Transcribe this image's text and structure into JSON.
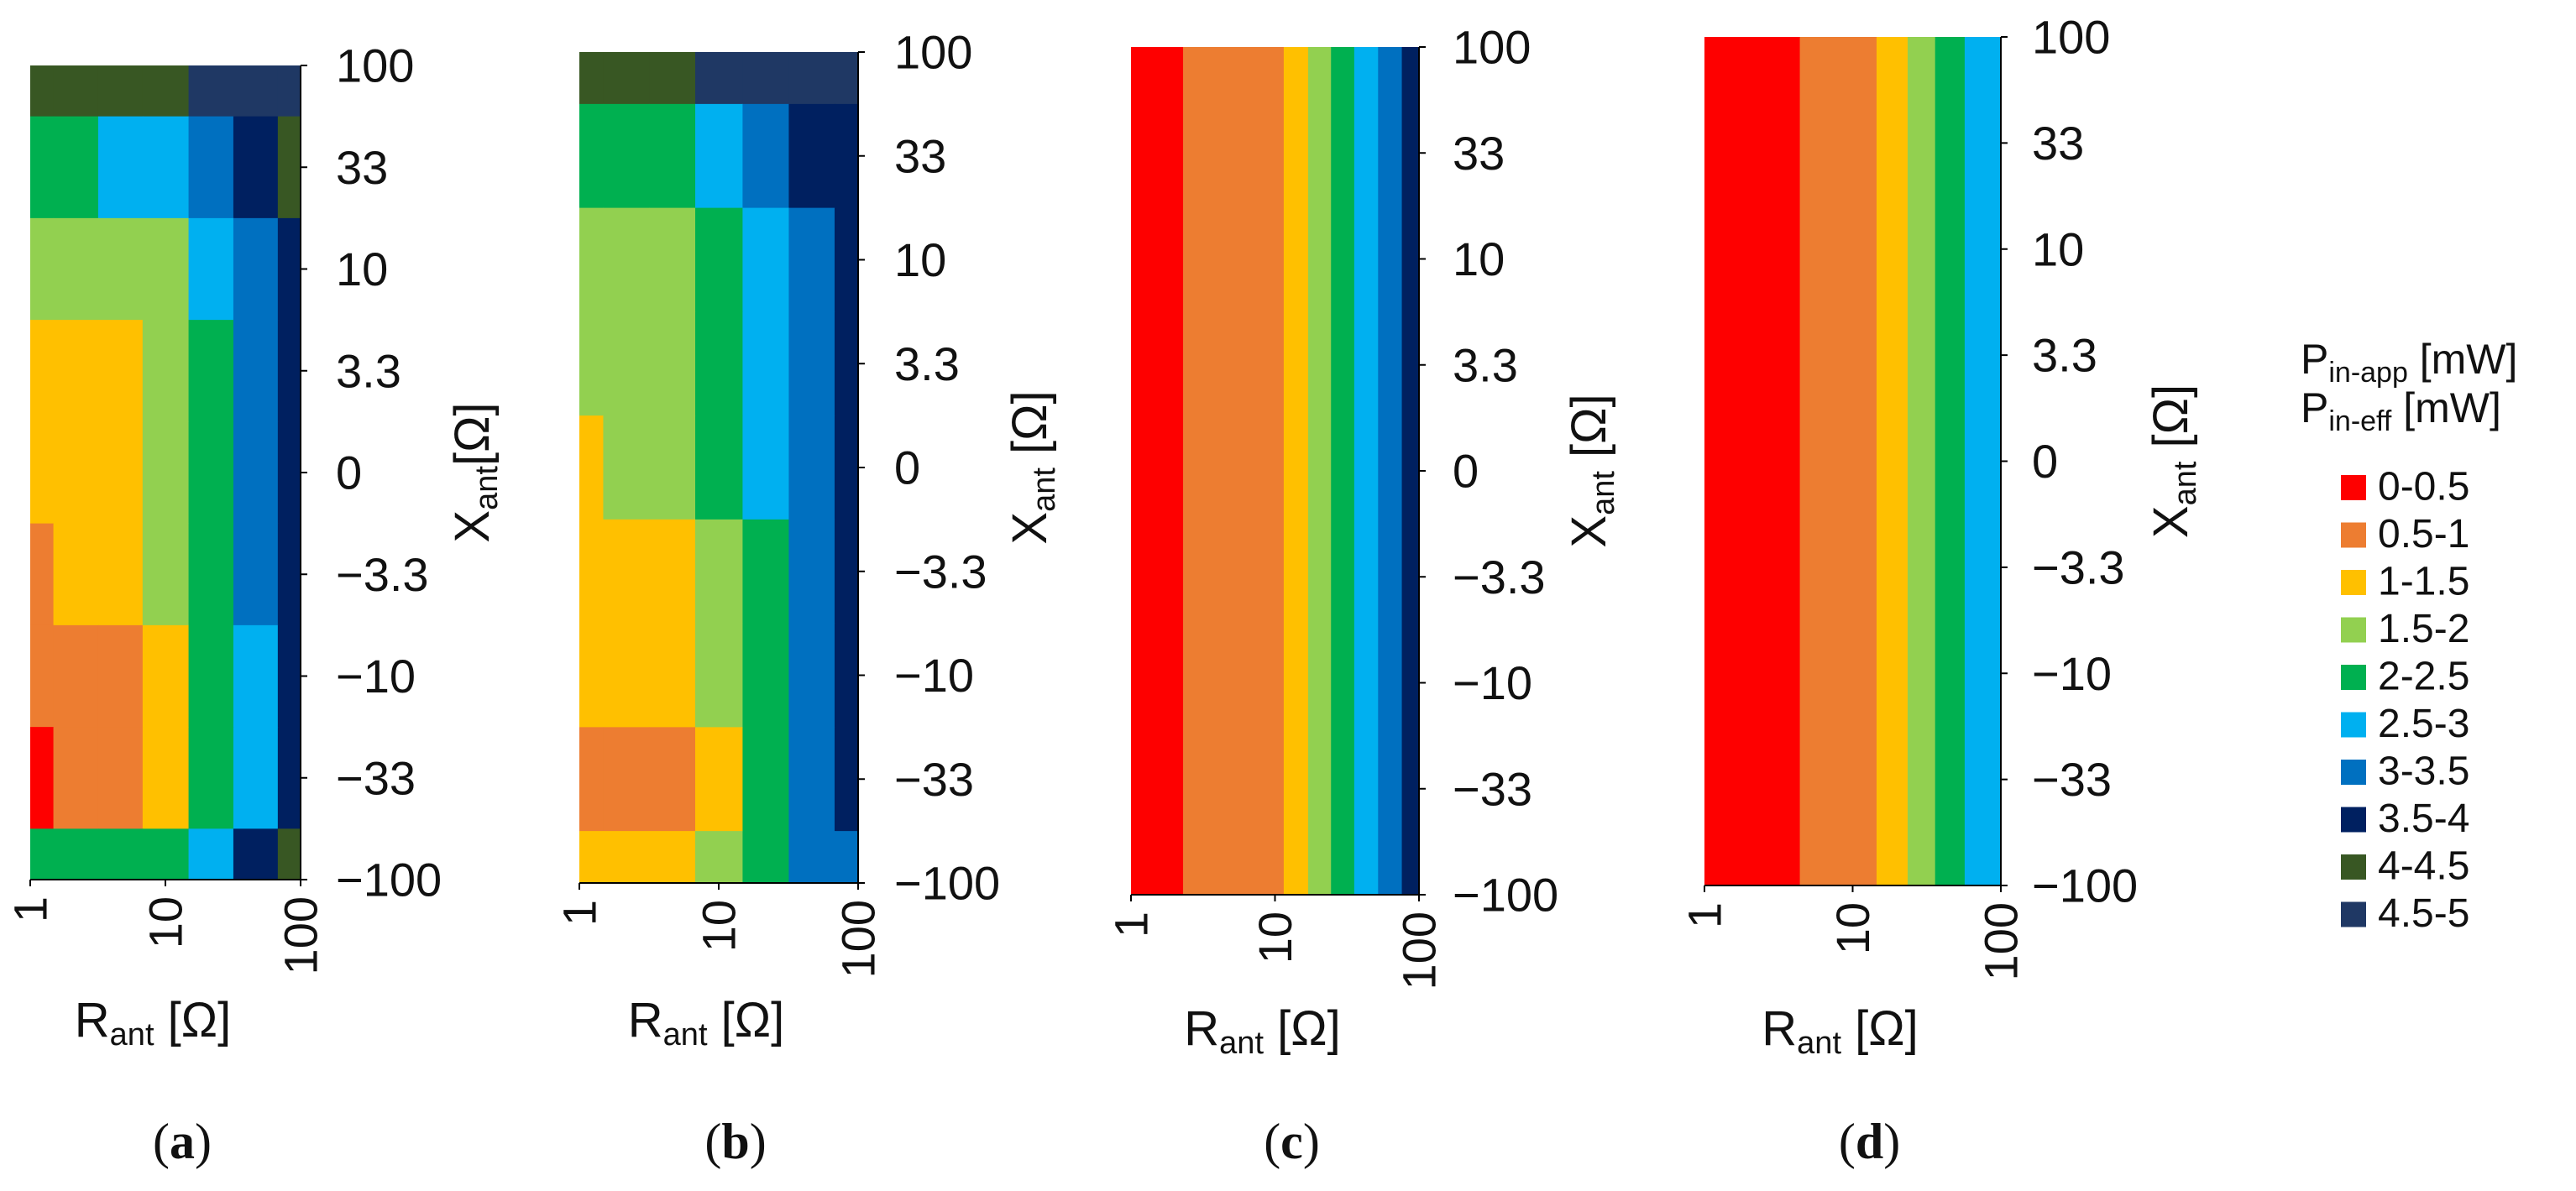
{
  "legend": {
    "title_lines": [
      {
        "main": "P",
        "sub": "in-app",
        "unit": " [mW]"
      },
      {
        "main": "P",
        "sub": "in-eff",
        "unit": " [mW]"
      }
    ],
    "items": [
      {
        "label": "0-0.5",
        "color": "#fe0000"
      },
      {
        "label": "0.5-1",
        "color": "#ed7d31"
      },
      {
        "label": "1-1.5",
        "color": "#ffc000"
      },
      {
        "label": "1.5-2",
        "color": "#92d050"
      },
      {
        "label": "2-2.5",
        "color": "#00b050"
      },
      {
        "label": "2.5-3",
        "color": "#00b0f0"
      },
      {
        "label": "3-3.5",
        "color": "#0070c0"
      },
      {
        "label": "3.5-4",
        "color": "#002060"
      },
      {
        "label": "4-4.5",
        "color": "#385723"
      },
      {
        "label": "4.5-5",
        "color": "#1f3864"
      }
    ]
  },
  "chart_data": [
    {
      "type": "heatmap",
      "panel_label": "(a)",
      "x_axis": {
        "main": "R",
        "sub": "ant",
        "unit": " [Ω]",
        "ticks": [
          "1",
          "10",
          "100"
        ],
        "scale": "log"
      },
      "y_axis": {
        "main": "X",
        "sub": "ant",
        "unit": "[Ω]",
        "ticks": [
          "100",
          "33",
          "10",
          "3.3",
          "0",
          "−3.3",
          "−10",
          "−33",
          "−100"
        ]
      },
      "z_bins": [
        "0-0.5",
        "0.5-1",
        "1-1.5",
        "1.5-2",
        "2-2.5",
        "2.5-3",
        "3-3.5",
        "3.5-4",
        "4-4.5",
        "4.5-5"
      ],
      "x_values": [
        1,
        2.2,
        4.6,
        10,
        22,
        46,
        100
      ],
      "y_values": [
        100,
        33,
        10,
        3.3,
        0,
        -3.3,
        -10,
        -33,
        -100
      ],
      "z_bin_index": [
        [
          8,
          8,
          8,
          8,
          9,
          9,
          9
        ],
        [
          4,
          4,
          5,
          5,
          6,
          7,
          8
        ],
        [
          3,
          3,
          3,
          3,
          5,
          6,
          7
        ],
        [
          2,
          2,
          2,
          3,
          4,
          6,
          7
        ],
        [
          2,
          2,
          2,
          3,
          4,
          6,
          7
        ],
        [
          1,
          2,
          2,
          3,
          4,
          6,
          7
        ],
        [
          1,
          1,
          1,
          2,
          4,
          5,
          7
        ],
        [
          0,
          1,
          1,
          2,
          4,
          5,
          7
        ],
        [
          4,
          4,
          4,
          4,
          5,
          7,
          8
        ]
      ]
    },
    {
      "type": "heatmap",
      "panel_label": "(b)",
      "x_axis": {
        "main": "R",
        "sub": "ant",
        "unit": " [Ω]",
        "ticks": [
          "1",
          "10",
          "100"
        ],
        "scale": "log"
      },
      "y_axis": {
        "main": "X",
        "sub": "ant",
        "unit": " [Ω]",
        "ticks": [
          "100",
          "33",
          "10",
          "3.3",
          "0",
          "−3.3",
          "−10",
          "−33",
          "−100"
        ]
      },
      "z_bins": [
        "0-0.5",
        "0.5-1",
        "1-1.5",
        "1.5-2",
        "2-2.5",
        "2.5-3",
        "3-3.5",
        "3.5-4",
        "4-4.5",
        "4.5-5"
      ],
      "x_values": [
        1,
        2.2,
        4.6,
        10,
        22,
        46,
        100
      ],
      "y_values": [
        100,
        33,
        10,
        3.3,
        0,
        -3.3,
        -10,
        -33,
        -100
      ],
      "z_bin_index": [
        [
          8,
          8,
          8,
          9,
          9,
          9,
          9
        ],
        [
          4,
          4,
          4,
          5,
          6,
          7,
          7
        ],
        [
          3,
          3,
          3,
          4,
          5,
          6,
          7
        ],
        [
          3,
          3,
          3,
          4,
          5,
          6,
          7
        ],
        [
          2,
          3,
          3,
          4,
          5,
          6,
          7
        ],
        [
          2,
          2,
          2,
          3,
          4,
          6,
          7
        ],
        [
          2,
          2,
          2,
          3,
          4,
          6,
          7
        ],
        [
          1,
          1,
          1,
          2,
          4,
          6,
          7
        ],
        [
          2,
          2,
          2,
          3,
          4,
          6,
          6
        ]
      ]
    },
    {
      "type": "heatmap",
      "panel_label": "(c)",
      "x_axis": {
        "main": "R",
        "sub": "ant",
        "unit": " [Ω]",
        "ticks": [
          "1",
          "10",
          "100"
        ],
        "scale": "log"
      },
      "y_axis": {
        "main": "X",
        "sub": "ant",
        "unit": " [Ω]",
        "ticks": [
          "100",
          "33",
          "10",
          "3.3",
          "0",
          "−3.3",
          "−10",
          "−33",
          "−100"
        ]
      },
      "z_bins": [
        "0-0.5",
        "0.5-1",
        "1-1.5",
        "1.5-2",
        "2-2.5",
        "2.5-3",
        "3-3.5",
        "3.5-4"
      ],
      "bands_in_R": [
        {
          "r_from": 1,
          "r_to": 2.3,
          "bin_index": 0
        },
        {
          "r_from": 2.3,
          "r_to": 11.5,
          "bin_index": 1
        },
        {
          "r_from": 11.5,
          "r_to": 17,
          "bin_index": 2
        },
        {
          "r_from": 17,
          "r_to": 24.5,
          "bin_index": 3
        },
        {
          "r_from": 24.5,
          "r_to": 35.5,
          "bin_index": 4
        },
        {
          "r_from": 35.5,
          "r_to": 52,
          "bin_index": 5
        },
        {
          "r_from": 52,
          "r_to": 76,
          "bin_index": 6
        },
        {
          "r_from": 76,
          "r_to": 100,
          "bin_index": 7
        }
      ]
    },
    {
      "type": "heatmap",
      "panel_label": "(d)",
      "x_axis": {
        "main": "R",
        "sub": "ant",
        "unit": " [Ω]",
        "ticks": [
          "1",
          "10",
          "100"
        ],
        "scale": "log"
      },
      "y_axis": {
        "main": "X",
        "sub": "ant",
        "unit": " [Ω]",
        "ticks": [
          "100",
          "33",
          "10",
          "3.3",
          "0",
          "−3.3",
          "−10",
          "−33",
          "−100"
        ]
      },
      "z_bins": [
        "0-0.5",
        "0.5-1",
        "1-1.5",
        "1.5-2",
        "2-2.5",
        "2.5-3"
      ],
      "bands_in_R": [
        {
          "r_from": 1,
          "r_to": 4.4,
          "bin_index": 0
        },
        {
          "r_from": 4.4,
          "r_to": 14.5,
          "bin_index": 1
        },
        {
          "r_from": 14.5,
          "r_to": 23.5,
          "bin_index": 2
        },
        {
          "r_from": 23.5,
          "r_to": 36,
          "bin_index": 3
        },
        {
          "r_from": 36,
          "r_to": 57,
          "bin_index": 4
        },
        {
          "r_from": 57,
          "r_to": 100,
          "bin_index": 5
        }
      ]
    }
  ]
}
